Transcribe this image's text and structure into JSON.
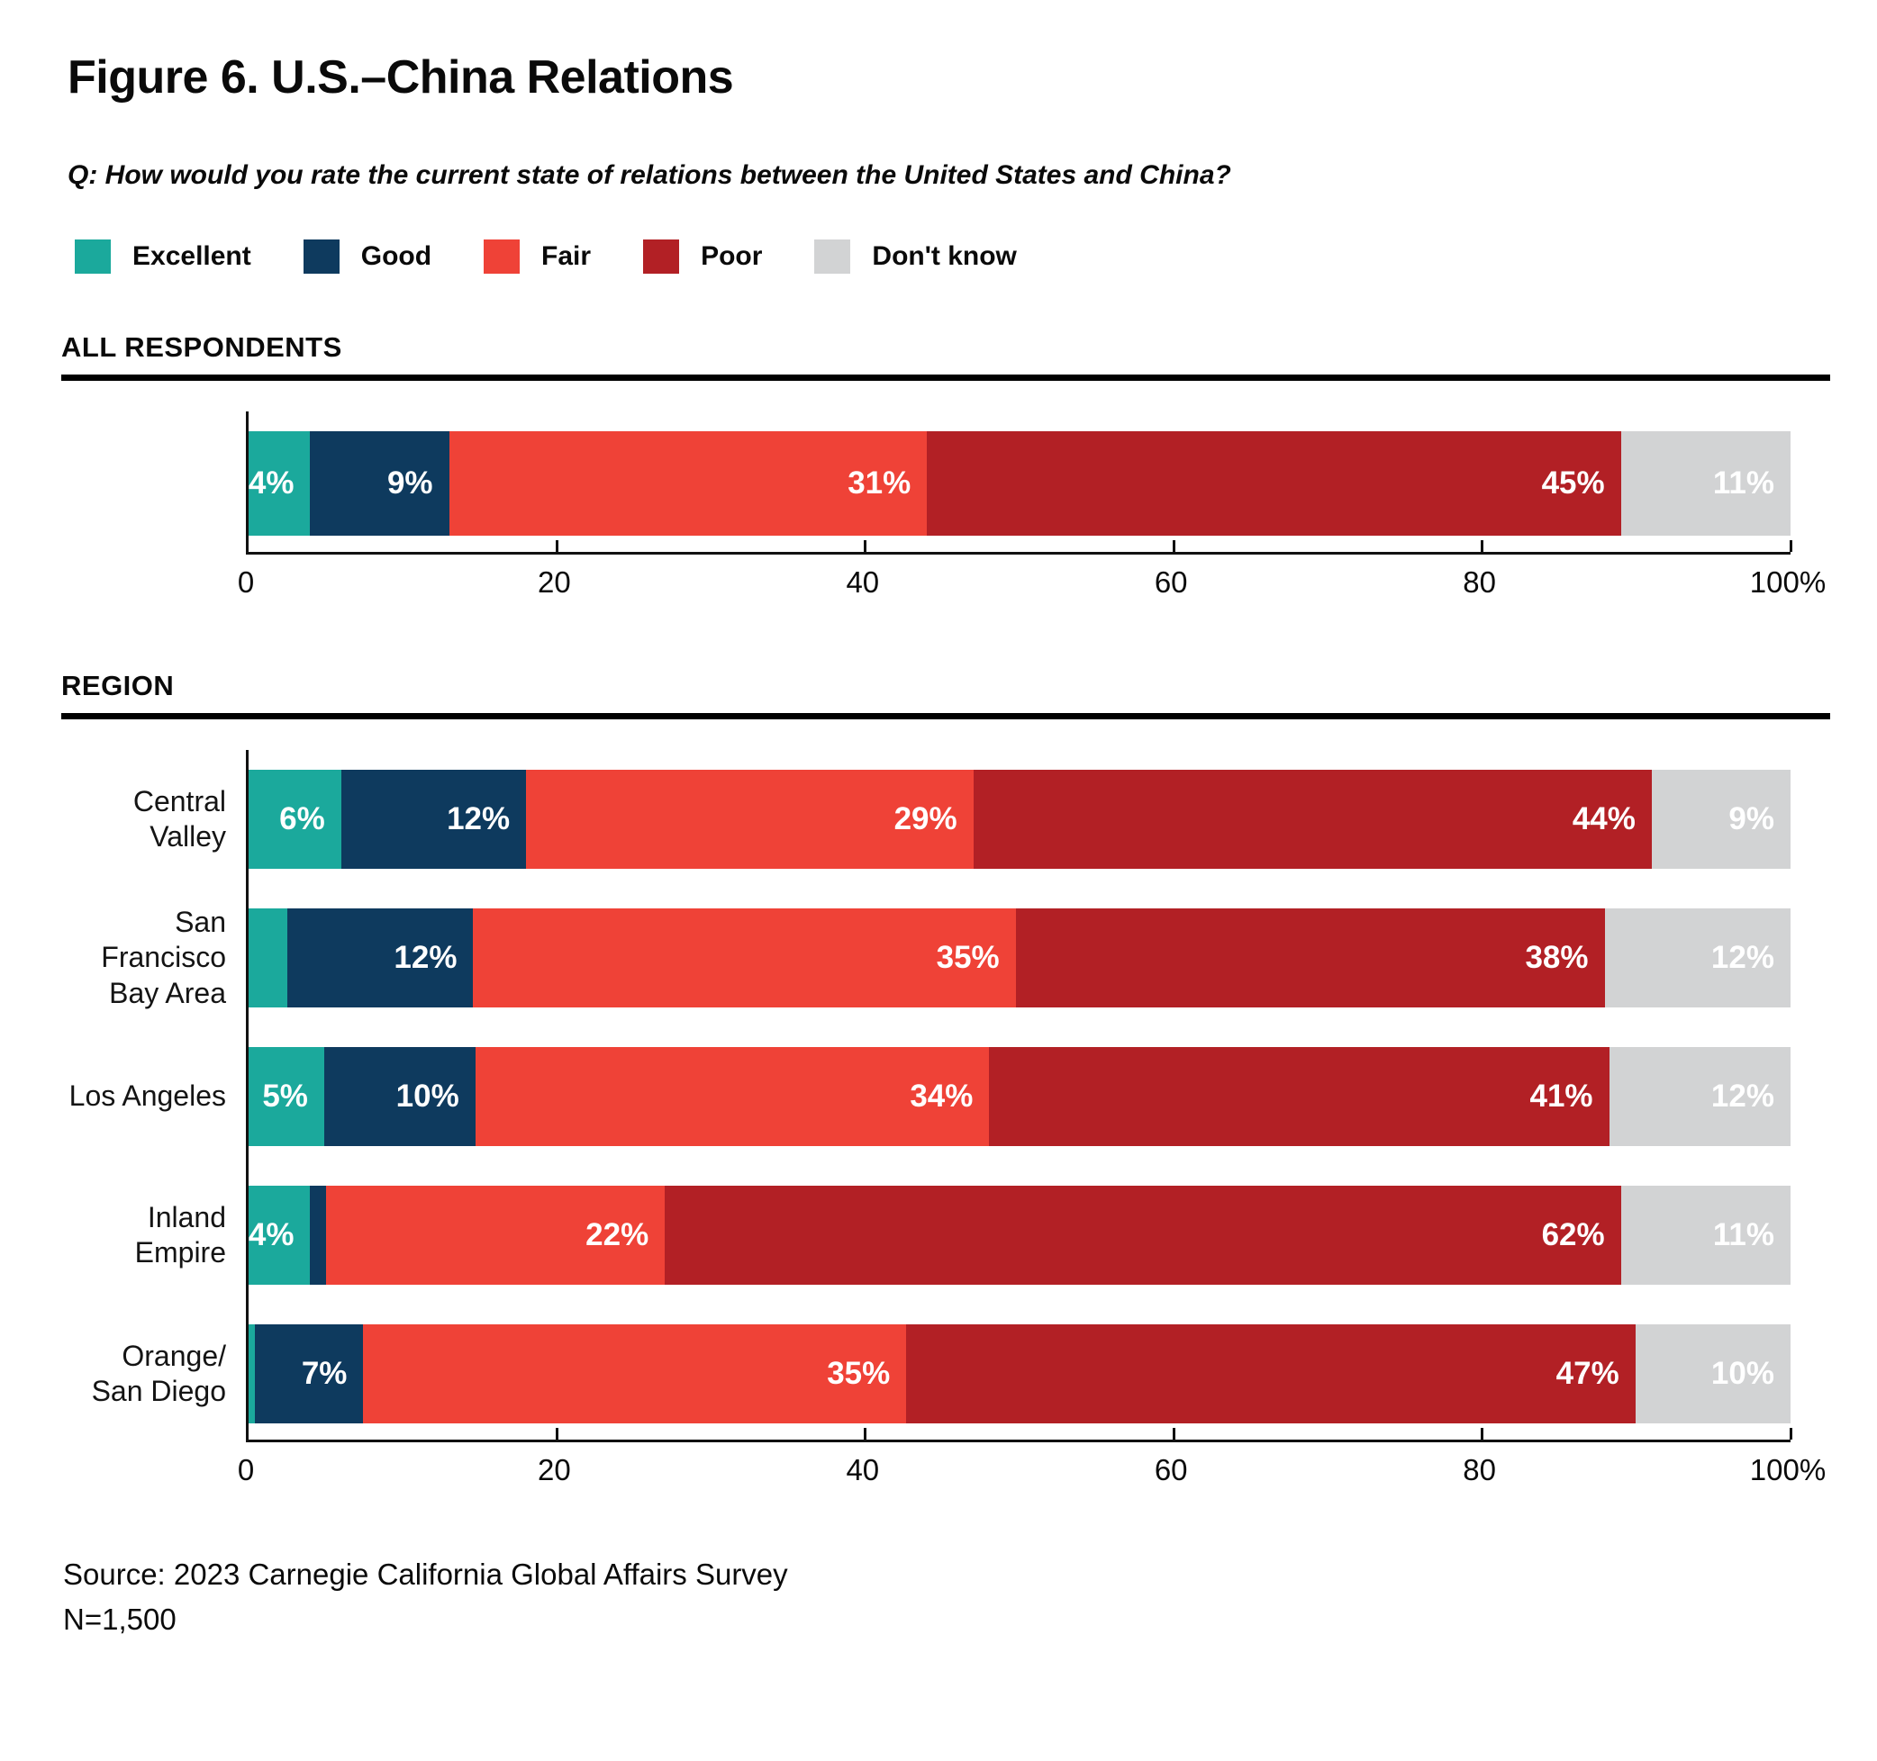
{
  "title": "Figure 6. U.S.–China Relations",
  "question": "Q: How would you rate the current state of relations between the United States and China?",
  "source_lines": {
    "line1": "Source: 2023 Carnegie California Global Affairs Survey",
    "line2": "N=1,500"
  },
  "chart_data": {
    "type": "bar",
    "variant": "horizontal-stacked-percent",
    "title": "Figure 6. U.S.–China Relations",
    "question": "Q: How would you rate the current state of relations between the United States and China?",
    "categories": [
      "Excellent",
      "Good",
      "Fair",
      "Poor",
      "Don't know"
    ],
    "colors": {
      "Excellent": "#1BA99C",
      "Good": "#0E3A5E",
      "Fair": "#EF4237",
      "Poor": "#B22025",
      "Don't know": "#D2D3D4"
    },
    "xlim": [
      0,
      100
    ],
    "x_ticks": [
      "0",
      "20",
      "40",
      "60",
      "80",
      "100%"
    ],
    "grid": false,
    "legend_position": "top",
    "sections": [
      {
        "heading": "ALL RESPONDENTS",
        "rows": [
          {
            "label": "",
            "values": [
              4,
              9,
              31,
              45,
              11
            ],
            "value_labels": [
              "4%",
              "9%",
              "31%",
              "45%",
              "11%"
            ]
          }
        ]
      },
      {
        "heading": "REGION",
        "rows": [
          {
            "label": "Central Valley",
            "values": [
              6,
              12,
              29,
              44,
              9
            ],
            "value_labels": [
              "6%",
              "12%",
              "29%",
              "44%",
              "9%"
            ]
          },
          {
            "label": "San Francisco\nBay Area",
            "values": [
              2.5,
              12,
              35,
              38,
              12
            ],
            "value_labels": [
              "",
              "12%",
              "35%",
              "38%",
              "12%"
            ]
          },
          {
            "label": "Los Angeles",
            "values": [
              5,
              10,
              34,
              41,
              12
            ],
            "value_labels": [
              "5%",
              "10%",
              "34%",
              "41%",
              "12%"
            ]
          },
          {
            "label": "Inland Empire",
            "values": [
              4,
              1,
              22,
              62,
              11
            ],
            "value_labels": [
              "4%",
              "",
              "22%",
              "62%",
              "11%"
            ]
          },
          {
            "label": "Orange/\nSan Diego",
            "values": [
              0.4,
              7,
              35,
              47,
              10
            ],
            "value_labels": [
              "",
              "7%",
              "35%",
              "47%",
              "10%"
            ]
          }
        ]
      }
    ]
  }
}
